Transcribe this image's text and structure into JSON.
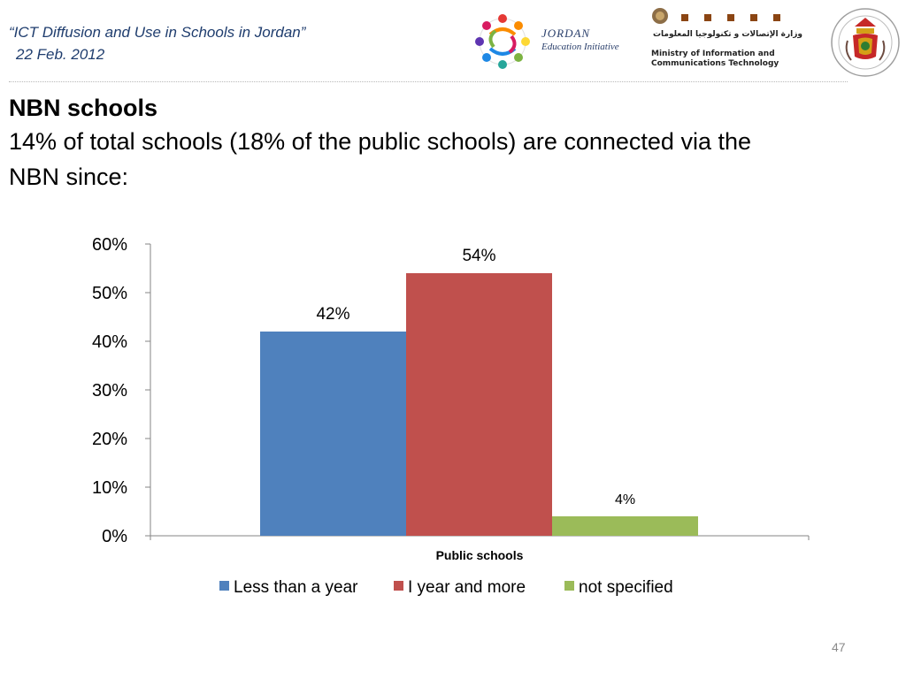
{
  "header": {
    "title_line1": "“ICT  Diffusion and Use in Schools in Jordan”",
    "title_line2": "22 Feb. 2012"
  },
  "logos": {
    "jei": {
      "word1": "JORDAN",
      "word2": "Education Initiative"
    },
    "ministry": {
      "arabic": "وزارة الإتصالات و تكنولوجيا المعلومات",
      "english_line1": "Ministry of Information and",
      "english_line2": "Communications Technology"
    }
  },
  "slide": {
    "heading": "NBN schools",
    "subtitle": "14% of total schools (18% of the public schools) are connected via the NBN since:",
    "page_number": "47"
  },
  "chart_data": {
    "type": "bar",
    "categories": [
      "Public schools"
    ],
    "series": [
      {
        "name": "Less than a year",
        "values": [
          42
        ],
        "color": "#4f81bd",
        "label": "42%"
      },
      {
        "name": "I year and more",
        "values": [
          54
        ],
        "color": "#c0504d",
        "label": "54%"
      },
      {
        "name": "not specified",
        "values": [
          4
        ],
        "color": "#9bbb59",
        "label": "4%"
      }
    ],
    "ylim": [
      0,
      60
    ],
    "yticks": [
      0,
      10,
      20,
      30,
      40,
      50,
      60
    ],
    "ytick_labels": [
      "0%",
      "10%",
      "20%",
      "30%",
      "40%",
      "50%",
      "60%"
    ],
    "xlabel": "",
    "ylabel": "",
    "grid": false,
    "legend_position": "bottom"
  }
}
